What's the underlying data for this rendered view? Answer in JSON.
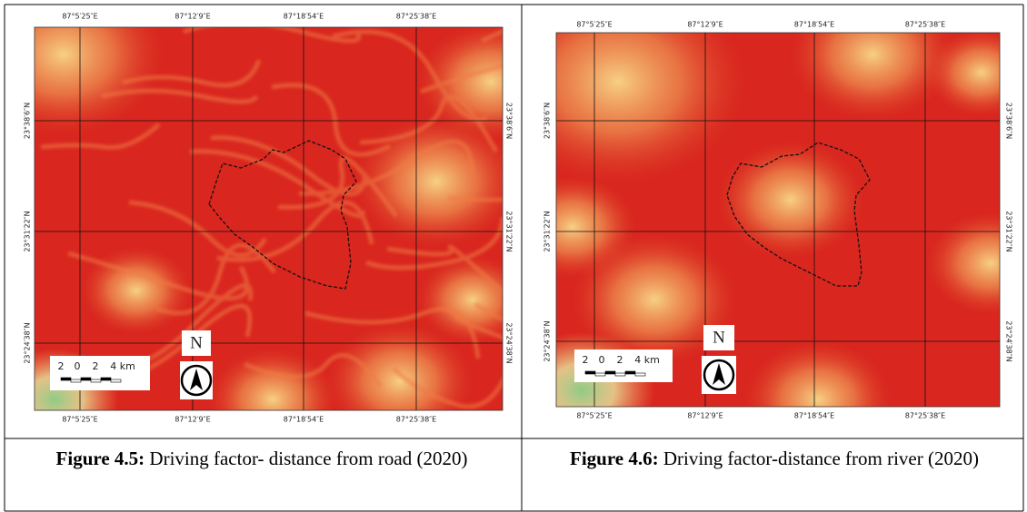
{
  "figures": [
    {
      "lon_labels": [
        "87°5′25″E",
        "87°12′9″E",
        "87°18′54″E",
        "87°25′38″E"
      ],
      "lat_labels": [
        "23°38′6″N",
        "23°31′22″N",
        "23°24′38″N"
      ],
      "scale_labels": [
        "2",
        "0",
        "2",
        "4 km"
      ],
      "north": "N",
      "caption": {
        "label": "Figure 4.5:",
        "text": "Driving factor- distance from road (2020)"
      }
    },
    {
      "lon_labels": [
        "87°5′25″E",
        "87°12′9″E",
        "87°18′54″E",
        "87°25′38″E"
      ],
      "lat_labels": [
        "23°38′6″N",
        "23°31′22″N",
        "23°24′38″N"
      ],
      "scale_labels": [
        "2",
        "0",
        "2",
        "4 km"
      ],
      "north": "N",
      "caption": {
        "label": "Figure 4.6:",
        "text": "Driving factor-distance from river (2020)"
      }
    }
  ]
}
